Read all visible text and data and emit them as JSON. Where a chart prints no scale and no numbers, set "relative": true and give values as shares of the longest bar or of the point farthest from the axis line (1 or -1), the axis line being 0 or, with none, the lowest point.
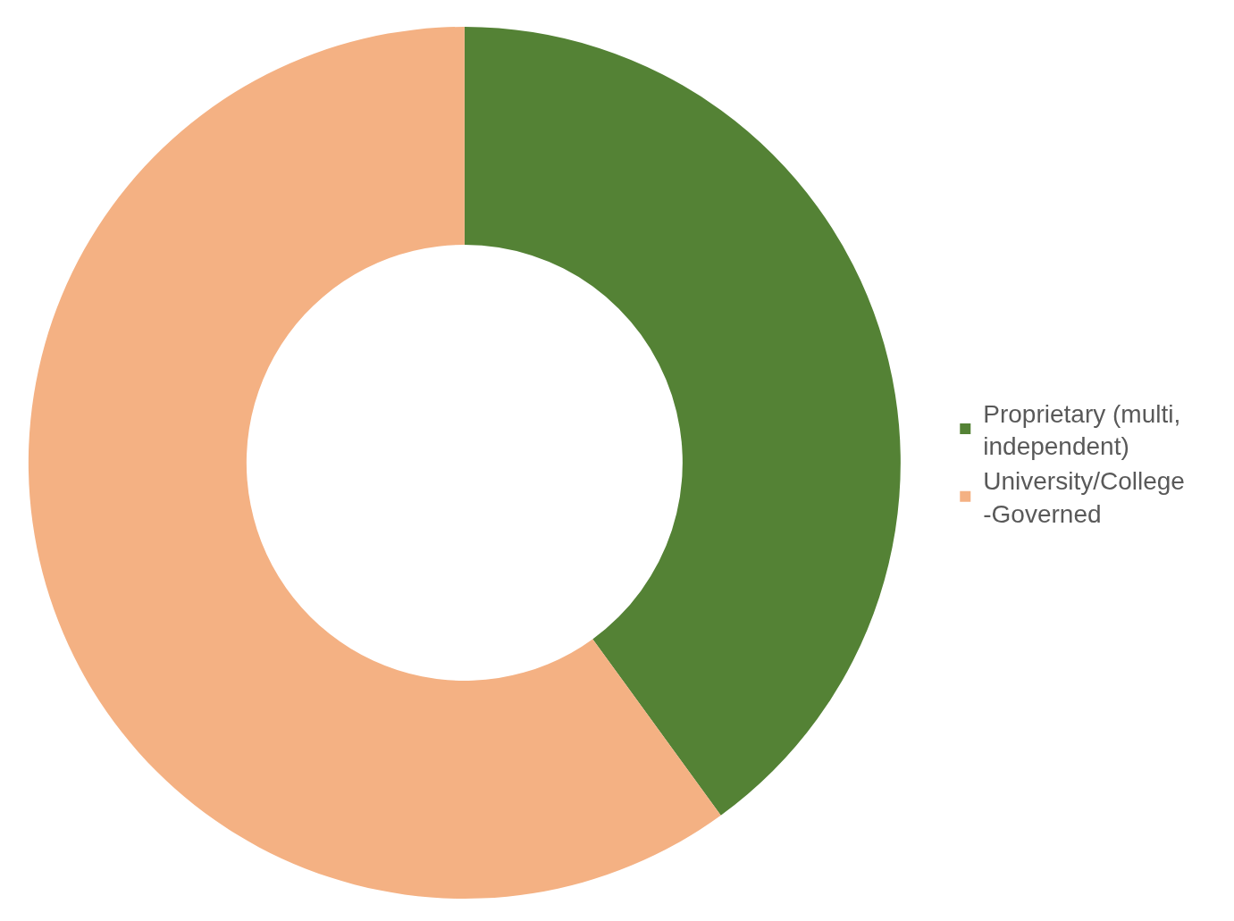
{
  "chart_data": {
    "type": "donut",
    "relative": true,
    "categories": [
      "Proprietary (multi, independent)",
      "University/College-Governed"
    ],
    "values": [
      40,
      60
    ],
    "colors": [
      "#548235",
      "#f4b183"
    ],
    "legend": "right"
  }
}
